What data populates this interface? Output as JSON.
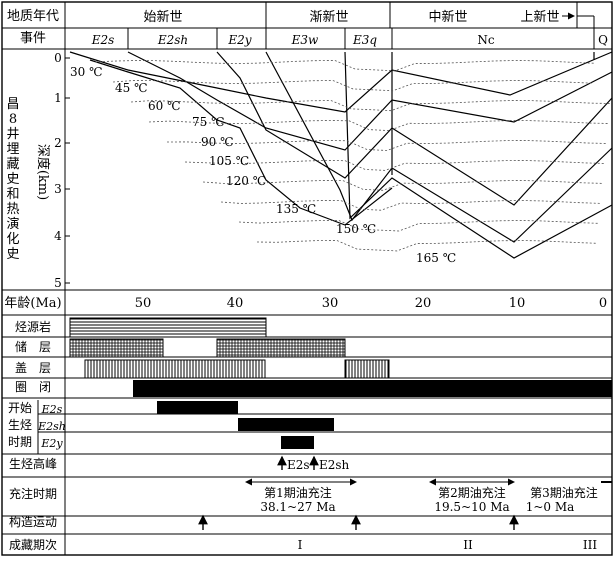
{
  "header": {
    "row1_label": "地质年代",
    "row2_label": "事件",
    "epochs": [
      "始新世",
      "渐新世",
      "中新世",
      "上新世"
    ],
    "formations": [
      "E2s",
      "E2sh",
      "E2y",
      "E3w",
      "E3q",
      "Nc",
      "Q"
    ]
  },
  "burial_panel": {
    "left_title_chars": [
      "昌",
      "8",
      "井",
      "埋",
      "藏",
      "史",
      "和",
      "热",
      "演",
      "化",
      "史"
    ],
    "depth_axis_label": "深度(km)",
    "depth_ticks": [
      "0",
      "1",
      "2",
      "3",
      "4",
      "5"
    ],
    "isotherm_labels": [
      "30 ℃",
      "45 ℃",
      "60 ℃",
      "75 ℃",
      "90 ℃",
      "105 ℃",
      "120 ℃",
      "135 ℃",
      "150 ℃",
      "165 ℃"
    ]
  },
  "age_axis": {
    "label": "年龄(Ma)",
    "ticks": [
      "50",
      "40",
      "30",
      "20",
      "10",
      "0"
    ]
  },
  "rows": {
    "source_rock": "烃源岩",
    "reservoir": "储　层",
    "caprock": "盖　层",
    "trap": "圈　闭",
    "gen_start_chars": [
      "开始",
      "生烃",
      "时期"
    ],
    "gen_start_formations": [
      "E2s",
      "E2sh",
      "E2y"
    ],
    "peak": "生烃高峰",
    "peak_annotations": [
      "E2s",
      "E2sh"
    ],
    "charge": "充注时期",
    "charge_periods": [
      {
        "name": "第1期油充注",
        "range": "38.1~27 Ma"
      },
      {
        "name": "第2期油充注",
        "range": "19.5~10 Ma"
      },
      {
        "name": "第3期油充注",
        "range": "1~0 Ma"
      }
    ],
    "tectonic": "构造运动",
    "accumulation": "成藏期次",
    "accumulation_phases": [
      "I",
      "II",
      "III"
    ]
  }
}
